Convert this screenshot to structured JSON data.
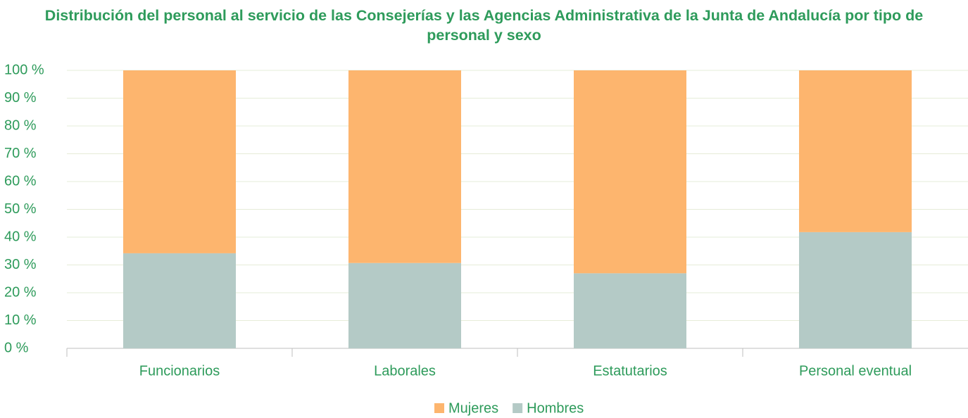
{
  "chart_data": {
    "type": "stacked_bar",
    "title": "Distribución del personal al servicio de las Consejerías y las Agencias Administrativa de la Junta de Andalucía por tipo de personal y sexo",
    "categories": [
      "Funcionarios",
      "Laborales",
      "Estatutarios",
      "Personal eventual"
    ],
    "series": [
      {
        "name": "Mujeres",
        "color": "#fdb56e",
        "values": [
          65.8,
          69.3,
          73,
          58.2
        ]
      },
      {
        "name": "Hombres",
        "color": "#b4cac6",
        "values": [
          34.2,
          30.7,
          27,
          41.8
        ]
      }
    ],
    "ylim": [
      0,
      100
    ],
    "yticks": [
      {
        "value": 0,
        "label": "0 %"
      },
      {
        "value": 10,
        "label": "10 %"
      },
      {
        "value": 20,
        "label": "20 %"
      },
      {
        "value": 30,
        "label": "30 %"
      },
      {
        "value": 40,
        "label": "40 %"
      },
      {
        "value": 50,
        "label": "50 %"
      },
      {
        "value": 60,
        "label": "60 %"
      },
      {
        "value": 70,
        "label": "70 %"
      },
      {
        "value": 80,
        "label": "80 %"
      },
      {
        "value": 90,
        "label": "90 %"
      },
      {
        "value": 100,
        "label": "100 %"
      }
    ],
    "grid": true,
    "legend": "bottom"
  }
}
